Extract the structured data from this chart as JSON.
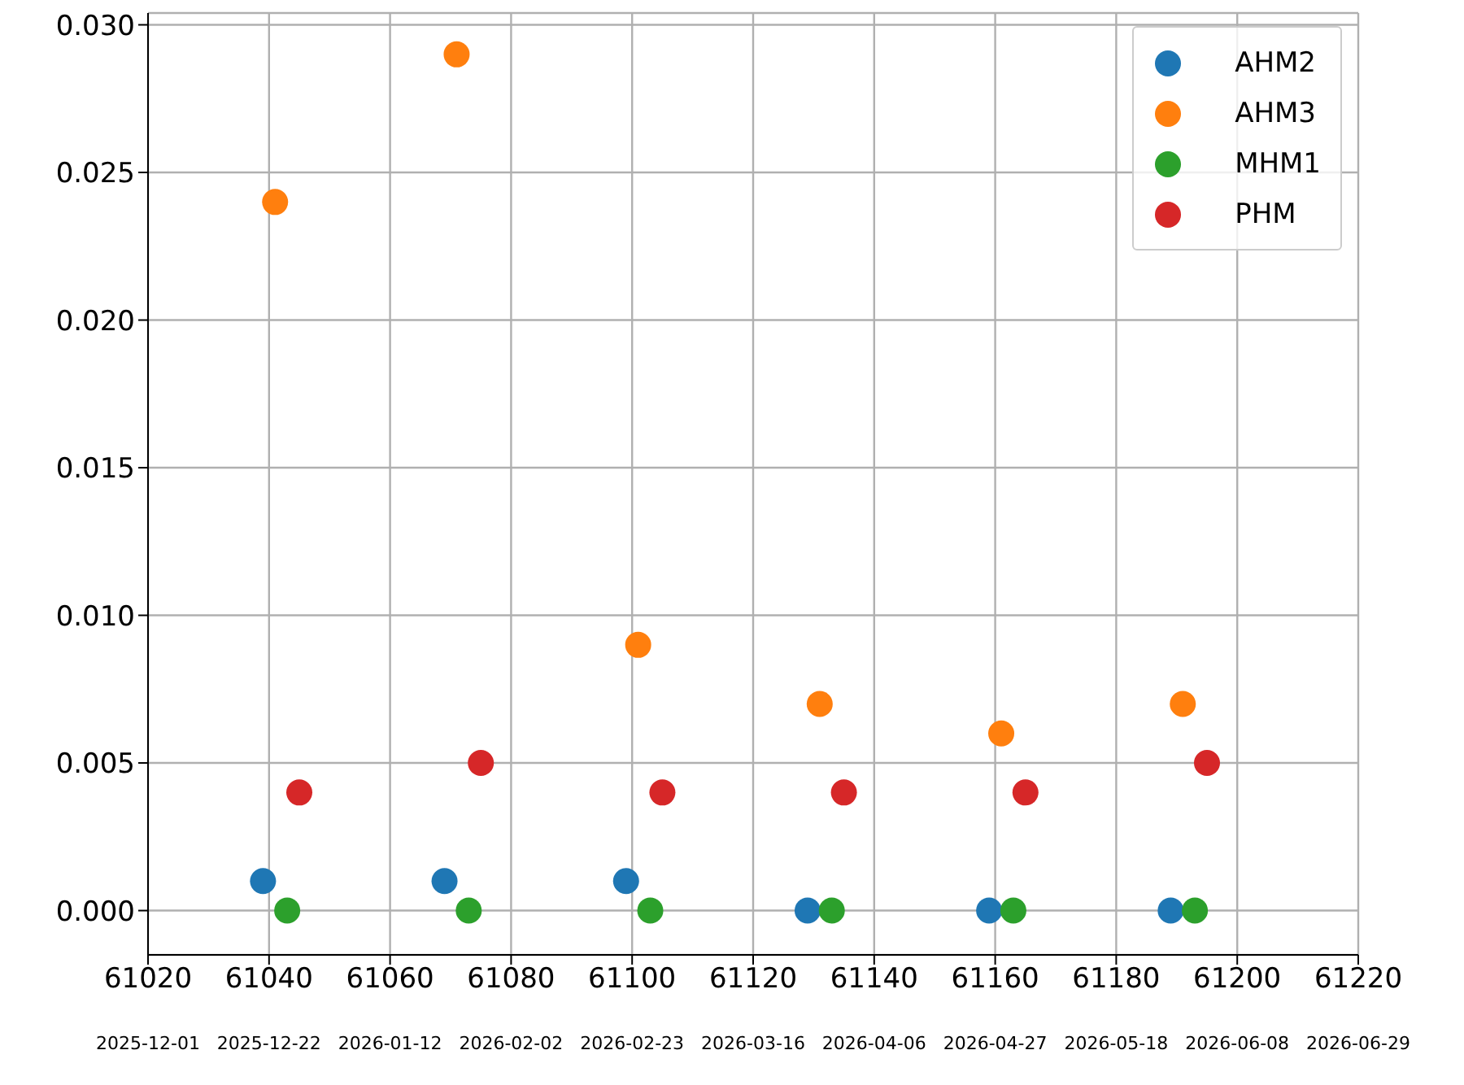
{
  "chart_data": {
    "type": "scatter",
    "marker": "circle",
    "grid": true,
    "legend": "top right",
    "xlim": [
      61020,
      61220
    ],
    "xticks": [
      61020,
      61040,
      61060,
      61080,
      61100,
      61120,
      61140,
      61160,
      61180,
      61200,
      61220
    ],
    "x2lim": [
      "2025-12-01",
      "2026-06-29"
    ],
    "x2ticks": [
      "2025-12-01",
      "2025-12-22",
      "2026-01-12",
      "2026-02-02",
      "2026-02-23",
      "2026-03-16",
      "2026-04-06",
      "2026-04-27",
      "2026-05-18",
      "2026-06-08",
      "2026-06-29"
    ],
    "ylim": [
      -0.0015,
      0.0304
    ],
    "yticks": [
      {
        "value": 0,
        "label": "0.000"
      },
      {
        "value": 0.005,
        "label": "0.005"
      },
      {
        "value": 0.01,
        "label": "0.010"
      },
      {
        "value": 0.015,
        "label": "0.015"
      },
      {
        "value": 0.02,
        "label": "0.020"
      },
      {
        "value": 0.025,
        "label": "0.025"
      },
      {
        "value": 0.03,
        "label": "0.030"
      }
    ],
    "series": [
      {
        "name": "AHM2",
        "color": "#1f77b4",
        "x": [
          61039,
          61069,
          61099,
          61129,
          61159,
          61189
        ],
        "values": [
          0.001,
          0.001,
          0.001,
          0,
          0,
          0
        ]
      },
      {
        "name": "AHM3",
        "color": "#ff7f0e",
        "x": [
          61041,
          61071,
          61101,
          61131,
          61161,
          61191
        ],
        "values": [
          0.024,
          0.029,
          0.009,
          0.007,
          0.006,
          0.007
        ]
      },
      {
        "name": "MHM1",
        "color": "#2ca02c",
        "x": [
          61043,
          61073,
          61103,
          61133,
          61163,
          61193
        ],
        "values": [
          0,
          0,
          0,
          0,
          0,
          0
        ]
      },
      {
        "name": "PHM",
        "color": "#d62728",
        "x": [
          61045,
          61075,
          61105,
          61135,
          61165,
          61195
        ],
        "values": [
          0.004,
          0.005,
          0.004,
          0.004,
          0.004,
          0.005
        ]
      }
    ]
  }
}
